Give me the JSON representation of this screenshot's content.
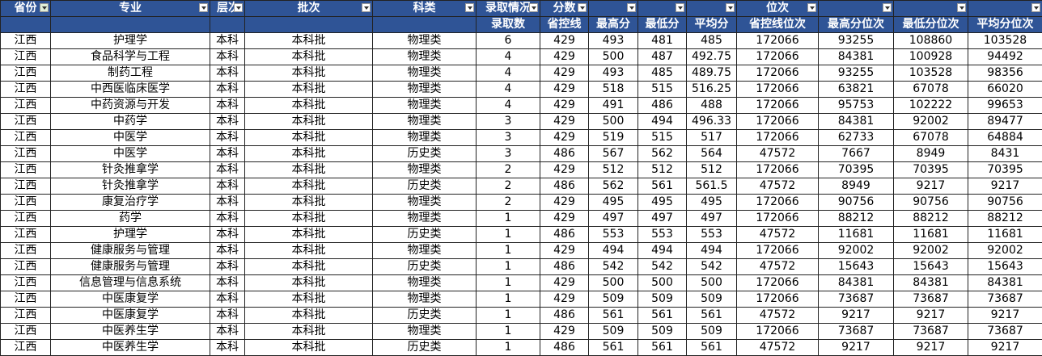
{
  "table": {
    "columns": [
      {
        "title": "省份"
      },
      {
        "title": "专业"
      },
      {
        "title": "层次"
      },
      {
        "title": "批次"
      },
      {
        "title": "科类"
      },
      {
        "title": "录取情况",
        "subtitle": "录取数"
      },
      {
        "title": "分数",
        "subtitle": "省控线"
      },
      {
        "subtitle": "最高分"
      },
      {
        "subtitle": "最低分"
      },
      {
        "subtitle": "平均分"
      },
      {
        "title": "位次",
        "subtitle": "省控线位次"
      },
      {
        "subtitle": "最高分位次"
      },
      {
        "subtitle": "最低分位次"
      },
      {
        "subtitle": "平均分位次"
      }
    ],
    "rows": [
      [
        "江西",
        "护理学",
        "本科",
        "本科批",
        "物理类",
        6,
        429,
        493,
        481,
        485,
        172066,
        93255,
        108860,
        103528
      ],
      [
        "江西",
        "食品科学与工程",
        "本科",
        "本科批",
        "物理类",
        4,
        429,
        500,
        487,
        492.75,
        172066,
        84381,
        100928,
        94492
      ],
      [
        "江西",
        "制药工程",
        "本科",
        "本科批",
        "物理类",
        4,
        429,
        493,
        485,
        489.75,
        172066,
        93255,
        103528,
        98356
      ],
      [
        "江西",
        "中西医临床医学",
        "本科",
        "本科批",
        "物理类",
        4,
        429,
        518,
        515,
        516.25,
        172066,
        63821,
        67078,
        66020
      ],
      [
        "江西",
        "中药资源与开发",
        "本科",
        "本科批",
        "物理类",
        4,
        429,
        491,
        486,
        488,
        172066,
        95753,
        102222,
        99653
      ],
      [
        "江西",
        "中药学",
        "本科",
        "本科批",
        "物理类",
        3,
        429,
        500,
        494,
        496.33,
        172066,
        84381,
        92002,
        89477
      ],
      [
        "江西",
        "中医学",
        "本科",
        "本科批",
        "物理类",
        3,
        429,
        519,
        515,
        517,
        172066,
        62733,
        67078,
        64884
      ],
      [
        "江西",
        "中医学",
        "本科",
        "本科批",
        "历史类",
        3,
        486,
        567,
        562,
        564,
        47572,
        7667,
        8949,
        8431
      ],
      [
        "江西",
        "针灸推拿学",
        "本科",
        "本科批",
        "物理类",
        2,
        429,
        512,
        512,
        512,
        172066,
        70395,
        70395,
        70395
      ],
      [
        "江西",
        "针灸推拿学",
        "本科",
        "本科批",
        "历史类",
        2,
        486,
        562,
        561,
        561.5,
        47572,
        8949,
        9217,
        9217
      ],
      [
        "江西",
        "康复治疗学",
        "本科",
        "本科批",
        "物理类",
        2,
        429,
        495,
        495,
        495,
        172066,
        90756,
        90756,
        90756
      ],
      [
        "江西",
        "药学",
        "本科",
        "本科批",
        "物理类",
        1,
        429,
        497,
        497,
        497,
        172066,
        88212,
        88212,
        88212
      ],
      [
        "江西",
        "护理学",
        "本科",
        "本科批",
        "历史类",
        1,
        486,
        553,
        553,
        553,
        47572,
        11681,
        11681,
        11681
      ],
      [
        "江西",
        "健康服务与管理",
        "本科",
        "本科批",
        "物理类",
        1,
        429,
        494,
        494,
        494,
        172066,
        92002,
        92002,
        92002
      ],
      [
        "江西",
        "健康服务与管理",
        "本科",
        "本科批",
        "历史类",
        1,
        486,
        542,
        542,
        542,
        47572,
        15643,
        15643,
        15643
      ],
      [
        "江西",
        "信息管理与信息系统",
        "本科",
        "本科批",
        "物理类",
        1,
        429,
        500,
        500,
        500,
        172066,
        84381,
        84381,
        84381
      ],
      [
        "江西",
        "中医康复学",
        "本科",
        "本科批",
        "物理类",
        1,
        429,
        509,
        509,
        509,
        172066,
        73687,
        73687,
        73687
      ],
      [
        "江西",
        "中医康复学",
        "本科",
        "本科批",
        "历史类",
        1,
        486,
        561,
        561,
        561,
        47572,
        9217,
        9217,
        9217
      ],
      [
        "江西",
        "中医养生学",
        "本科",
        "本科批",
        "物理类",
        1,
        429,
        509,
        509,
        509,
        172066,
        73687,
        73687,
        73687
      ],
      [
        "江西",
        "中医养生学",
        "本科",
        "本科批",
        "历史类",
        1,
        486,
        561,
        561,
        561,
        47572,
        9217,
        9217,
        9217
      ]
    ]
  }
}
